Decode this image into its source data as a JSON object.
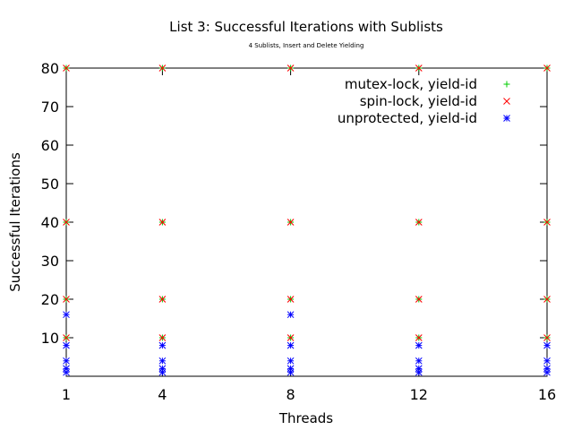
{
  "chart_data": {
    "type": "scatter",
    "title": "List 3: Successful Iterations with Sublists",
    "subtitle": "4 Sublists, Insert and Delete Yielding",
    "xlabel": "Threads",
    "ylabel": "Successful Iterations",
    "xlim": [
      1,
      16
    ],
    "ylim": [
      0,
      80
    ],
    "x_ticks": [
      1,
      4,
      8,
      12,
      16
    ],
    "y_ticks": [
      10,
      20,
      30,
      40,
      50,
      60,
      70,
      80
    ],
    "grid": false,
    "legend_position": "top-right",
    "series": [
      {
        "name": "mutex-lock, yield-id",
        "marker": "plus",
        "color": "#00cc00",
        "points": [
          [
            1,
            10
          ],
          [
            1,
            20
          ],
          [
            1,
            40
          ],
          [
            1,
            80
          ],
          [
            4,
            10
          ],
          [
            4,
            20
          ],
          [
            4,
            40
          ],
          [
            4,
            80
          ],
          [
            8,
            10
          ],
          [
            8,
            20
          ],
          [
            8,
            40
          ],
          [
            8,
            80
          ],
          [
            12,
            10
          ],
          [
            12,
            20
          ],
          [
            12,
            40
          ],
          [
            12,
            80
          ],
          [
            16,
            10
          ],
          [
            16,
            20
          ],
          [
            16,
            40
          ],
          [
            16,
            80
          ]
        ]
      },
      {
        "name": "spin-lock, yield-id",
        "marker": "cross",
        "color": "#ff0000",
        "points": [
          [
            1,
            10
          ],
          [
            1,
            20
          ],
          [
            1,
            40
          ],
          [
            1,
            80
          ],
          [
            4,
            10
          ],
          [
            4,
            20
          ],
          [
            4,
            40
          ],
          [
            4,
            80
          ],
          [
            8,
            10
          ],
          [
            8,
            20
          ],
          [
            8,
            40
          ],
          [
            8,
            80
          ],
          [
            12,
            10
          ],
          [
            12,
            20
          ],
          [
            12,
            40
          ],
          [
            12,
            80
          ],
          [
            16,
            10
          ],
          [
            16,
            20
          ],
          [
            16,
            40
          ],
          [
            16,
            80
          ]
        ]
      },
      {
        "name": "unprotected, yield-id",
        "marker": "star",
        "color": "#0000ff",
        "points": [
          [
            1,
            1
          ],
          [
            1,
            2
          ],
          [
            1,
            4
          ],
          [
            1,
            8
          ],
          [
            1,
            16
          ],
          [
            4,
            1
          ],
          [
            4,
            2
          ],
          [
            4,
            4
          ],
          [
            4,
            8
          ],
          [
            8,
            1
          ],
          [
            8,
            2
          ],
          [
            8,
            4
          ],
          [
            8,
            8
          ],
          [
            8,
            16
          ],
          [
            12,
            1
          ],
          [
            12,
            2
          ],
          [
            12,
            4
          ],
          [
            12,
            8
          ],
          [
            16,
            1
          ],
          [
            16,
            2
          ],
          [
            16,
            4
          ],
          [
            16,
            8
          ]
        ]
      }
    ]
  }
}
